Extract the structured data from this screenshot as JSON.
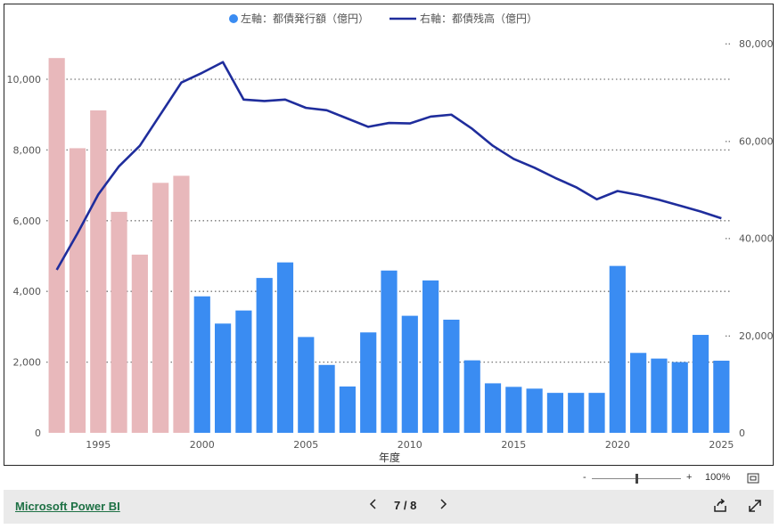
{
  "chart_data": {
    "type": "bar+line",
    "xlabel": "年度",
    "x_ticks": [
      "1995",
      "2000",
      "2005",
      "2010",
      "2015",
      "2020",
      "2025"
    ],
    "legend": [
      {
        "name": "左軸：都債発行額（億円）",
        "color": "#3a8cf2"
      },
      {
        "name": "右軸：都債残高（億円）",
        "color": "#1f2d9c"
      }
    ],
    "left_axis": {
      "ylim": [
        0,
        11000
      ],
      "ticks": [
        "0",
        "2,000",
        "4,000",
        "6,000",
        "8,000",
        "10,000"
      ]
    },
    "right_axis": {
      "ylim": [
        0,
        80000
      ],
      "ticks": [
        "0",
        "20,000",
        "40,000",
        "60,000",
        "80,000"
      ]
    },
    "years": [
      1993,
      1994,
      1995,
      1996,
      1997,
      1998,
      1999,
      2000,
      2001,
      2002,
      2003,
      2004,
      2005,
      2006,
      2007,
      2008,
      2009,
      2010,
      2011,
      2012,
      2013,
      2014,
      2015,
      2016,
      2017,
      2018,
      2019,
      2020,
      2021,
      2022,
      2023,
      2024,
      2025
    ],
    "series": [
      {
        "name": "左軸：都債発行額（億円）",
        "axis": "left",
        "values": [
          10600,
          8050,
          9120,
          6250,
          5040,
          7070,
          7270,
          3860,
          3090,
          3460,
          4380,
          4820,
          2710,
          1920,
          1310,
          2840,
          4590,
          3310,
          4310,
          3200,
          2050,
          1400,
          1300,
          1250,
          1130,
          1130,
          1130,
          4720,
          2260,
          2100,
          2000,
          2770,
          2040
        ],
        "colors": [
          "#e8b8bb",
          "#e8b8bb",
          "#e8b8bb",
          "#e8b8bb",
          "#e8b8bb",
          "#e8b8bb",
          "#e8b8bb",
          "#3a8cf2",
          "#3a8cf2",
          "#3a8cf2",
          "#3a8cf2",
          "#3a8cf2",
          "#3a8cf2",
          "#3a8cf2",
          "#3a8cf2",
          "#3a8cf2",
          "#3a8cf2",
          "#3a8cf2",
          "#3a8cf2",
          "#3a8cf2",
          "#3a8cf2",
          "#3a8cf2",
          "#3a8cf2",
          "#3a8cf2",
          "#3a8cf2",
          "#3a8cf2",
          "#3a8cf2",
          "#3a8cf2",
          "#3a8cf2",
          "#3a8cf2",
          "#3a8cf2",
          "#3a8cf2",
          "#3a8cf2"
        ]
      },
      {
        "name": "右軸：都債残高（億円）",
        "axis": "right",
        "values": [
          33500,
          41000,
          49000,
          54800,
          59000,
          65500,
          72000,
          74000,
          76200,
          68500,
          68200,
          68500,
          66800,
          66300,
          64600,
          62900,
          63700,
          63600,
          65000,
          65400,
          62500,
          59000,
          56300,
          54500,
          52400,
          50500,
          48000,
          49700,
          48900,
          47900,
          46700,
          45500,
          44100
        ]
      }
    ],
    "grid": "dotted-horizontal"
  },
  "toolbar": {
    "zoom_minus": "-",
    "zoom_plus": "+",
    "zoom_level": "100%",
    "zoom_fraction": 0.5
  },
  "footer": {
    "brand": "Microsoft Power BI",
    "page_indicator": "7 / 8"
  }
}
